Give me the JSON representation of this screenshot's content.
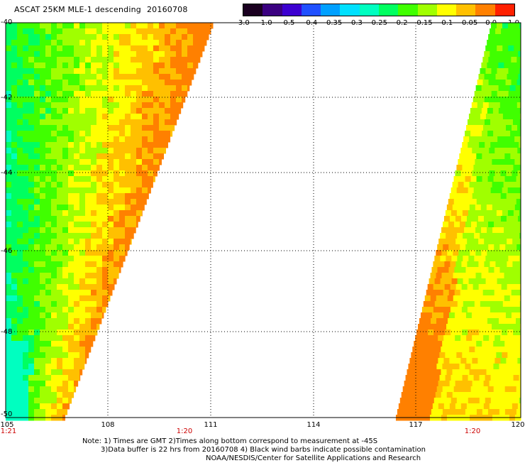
{
  "title": "ASCAT 25KM MLE-1 descending",
  "date": "20160708",
  "colorbar": {
    "colors": [
      "#1a0020",
      "#3a0080",
      "#3c00d0",
      "#2050ff",
      "#00a0ff",
      "#00e0ff",
      "#00ffc0",
      "#00ff60",
      "#40ff00",
      "#a0ff00",
      "#ffff00",
      "#ffc000",
      "#ff8000",
      "#ff2000"
    ],
    "tick_labels": [
      "-3.0",
      "-1.0",
      "-0.5",
      "-0.4",
      "-0.35",
      "-0.3",
      "-0.25",
      "-0.2",
      "-0.15",
      "-0.1",
      "-0.05",
      "0.0",
      "1.0"
    ]
  },
  "map": {
    "lon_range": [
      105,
      120
    ],
    "lat_range": [
      -50,
      -40
    ],
    "lon_labels": [
      "105",
      "108",
      "111",
      "114",
      "117",
      "120"
    ],
    "lat_labels": [
      "-40",
      "-42",
      "-44",
      "-46",
      "-48",
      "-50"
    ],
    "swaths": [
      {
        "name": "west-swath",
        "time_labels": [
          "1:21",
          "1:20"
        ]
      },
      {
        "name": "east-swath",
        "time_labels": [
          "1:20"
        ]
      }
    ],
    "palette": [
      "#00ffc0",
      "#00ff60",
      "#40ff00",
      "#a0ff00",
      "#ffff00",
      "#ffc000",
      "#ff8000"
    ]
  },
  "notes": {
    "line1": "Note: 1) Times are GMT 2)Times along bottom correspond to measurement at -45S",
    "line2": "3)Data buffer is 22 hrs from 20160708 4) Black wind barbs indicate possible contamination",
    "line3": "NOAA/NESDIS/Center for Satellite Applications and Research"
  }
}
